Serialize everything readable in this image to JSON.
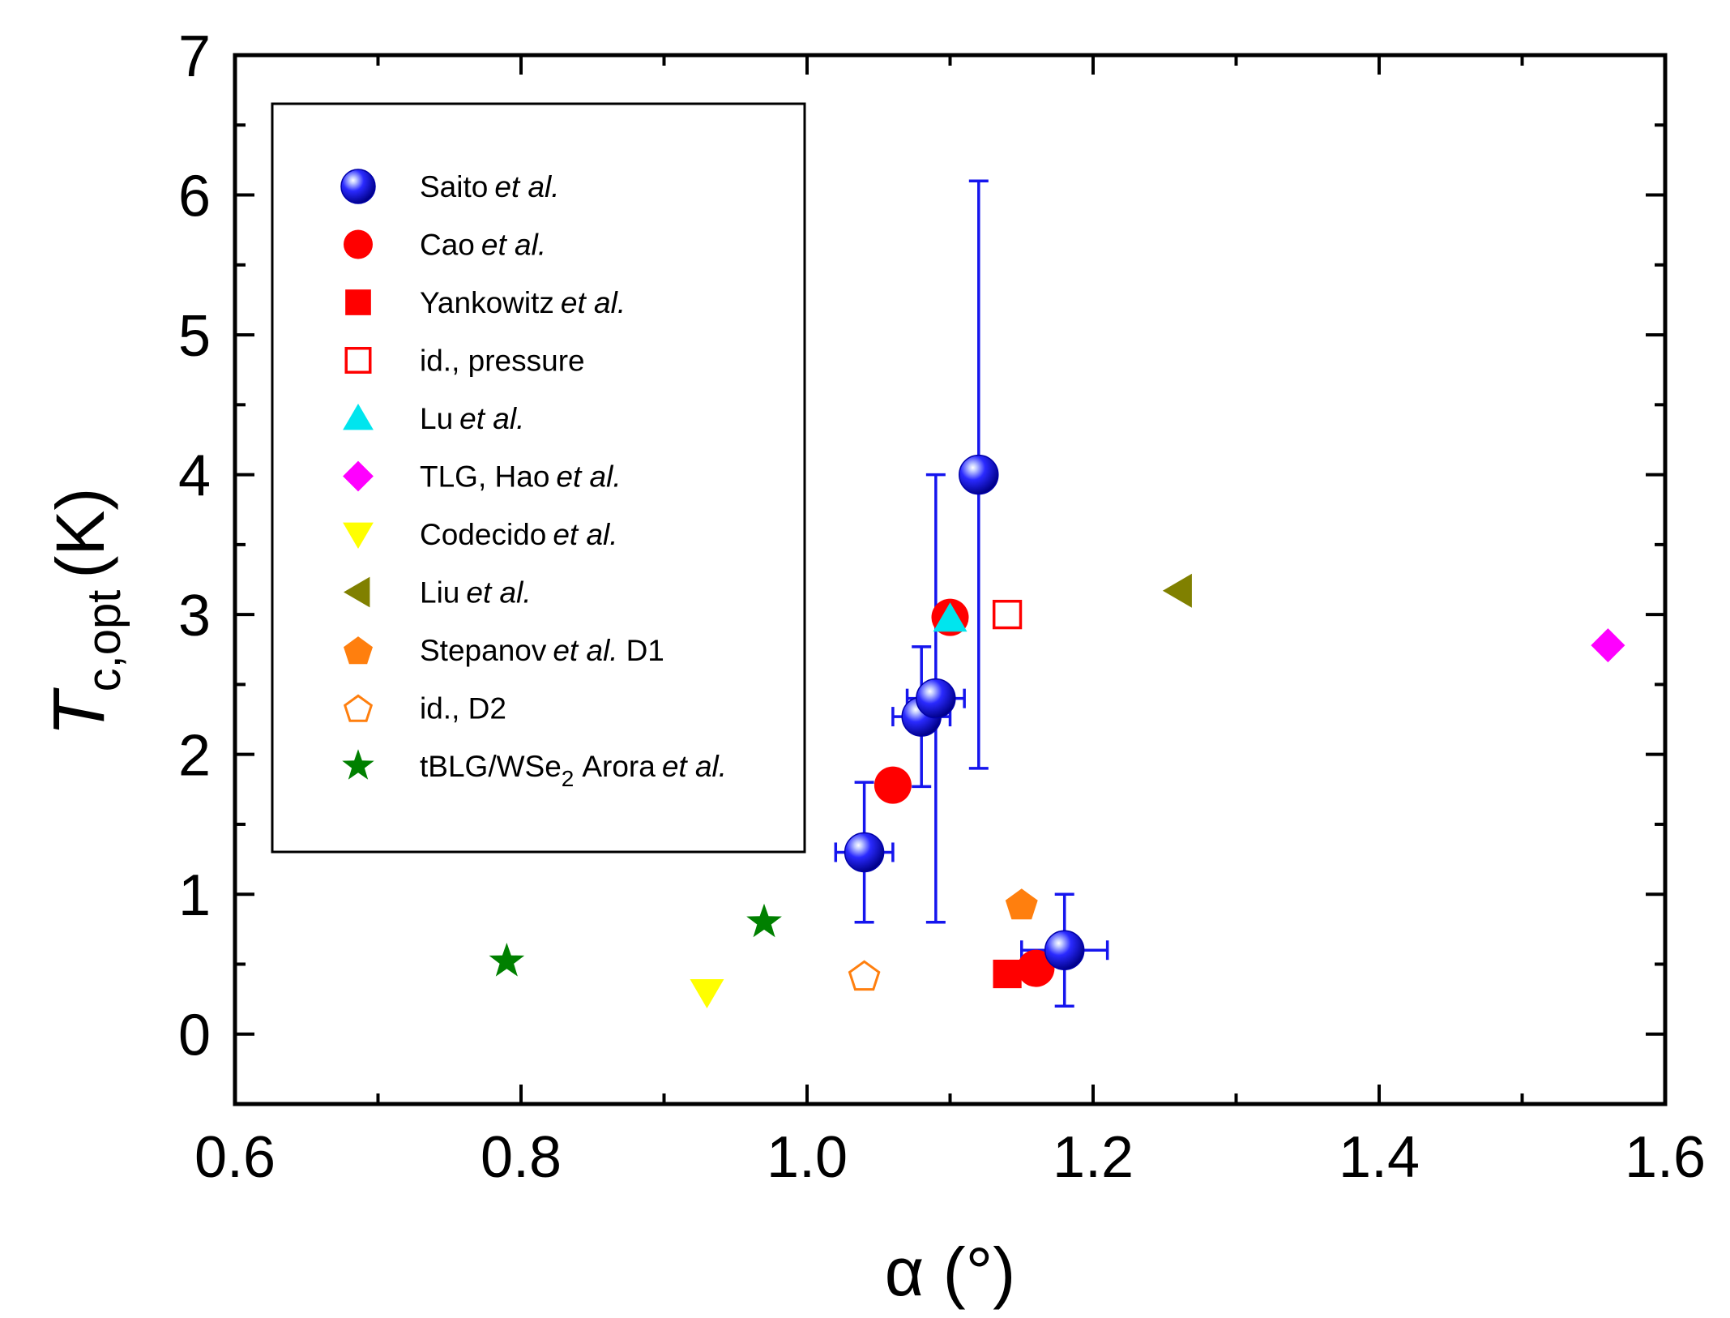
{
  "chart_data": {
    "type": "scatter",
    "xlabel": "α (°)",
    "ylabel": {
      "base": "T",
      "sub": "c,opt",
      "unit": "(K)"
    },
    "xlim": [
      0.6,
      1.6
    ],
    "ylim": [
      -0.5,
      7
    ],
    "xticks": [
      "0.6",
      "0.8",
      "1.0",
      "1.2",
      "1.4",
      "1.6"
    ],
    "yticks": [
      "0",
      "1",
      "2",
      "3",
      "4",
      "5",
      "6",
      "7"
    ],
    "grid": false,
    "legend_position": "top-left",
    "series": [
      {
        "name": "Saito",
        "suffix": "et al.",
        "marker": "sphere",
        "color": "#1515ee",
        "points": [
          {
            "x": 1.04,
            "y": 1.3,
            "xerr": 0.02,
            "yerr": [
              0.5,
              0.5
            ]
          },
          {
            "x": 1.08,
            "y": 2.27,
            "xerr": 0.02,
            "yerr": [
              0.5,
              0.5
            ]
          },
          {
            "x": 1.09,
            "y": 2.4,
            "xerr": 0.02,
            "yerr": [
              1.6,
              1.6
            ]
          },
          {
            "x": 1.12,
            "y": 4.0,
            "xerr": 0,
            "yerr": [
              2.1,
              2.1
            ]
          },
          {
            "x": 1.18,
            "y": 0.6,
            "xerr": 0.03,
            "yerr": [
              0.4,
              0.4
            ]
          }
        ]
      },
      {
        "name": "Cao",
        "suffix": "et al.",
        "marker": "circle",
        "color": "#ff0000",
        "points": [
          {
            "x": 1.06,
            "y": 1.78
          },
          {
            "x": 1.1,
            "y": 2.98
          },
          {
            "x": 1.16,
            "y": 0.47
          }
        ]
      },
      {
        "name": "Yankowitz",
        "suffix": "et al.",
        "marker": "square",
        "color": "#ff0000",
        "points": [
          {
            "x": 1.14,
            "y": 0.43
          }
        ]
      },
      {
        "name": "id., pressure",
        "suffix": "",
        "marker": "square-open",
        "color": "#ff0000",
        "points": [
          {
            "x": 1.14,
            "y": 3.0
          }
        ]
      },
      {
        "name": "Lu",
        "suffix": "et al.",
        "marker": "triangle-up",
        "color": "#00e5ee",
        "points": [
          {
            "x": 1.1,
            "y": 2.97
          }
        ]
      },
      {
        "name": "TLG, Hao",
        "suffix": "et al.",
        "marker": "diamond",
        "color": "#ff00ff",
        "points": [
          {
            "x": 1.56,
            "y": 2.78
          }
        ]
      },
      {
        "name": "Codecido",
        "suffix": "et al.",
        "marker": "triangle-down",
        "color": "#ffff00",
        "points": [
          {
            "x": 0.93,
            "y": 0.3
          }
        ]
      },
      {
        "name": "Liu",
        "suffix": "et al.",
        "marker": "triangle-left",
        "color": "#808000",
        "points": [
          {
            "x": 1.26,
            "y": 3.17
          }
        ]
      },
      {
        "name": "Stepanov",
        "suffix": "et al.",
        "extra": "D1",
        "marker": "pentagon",
        "color": "#ff7f0e",
        "points": [
          {
            "x": 1.15,
            "y": 0.93
          }
        ]
      },
      {
        "name": "id., D2",
        "suffix": "",
        "marker": "pentagon-open",
        "color": "#ff7f0e",
        "points": [
          {
            "x": 1.04,
            "y": 0.42
          }
        ]
      },
      {
        "name": "tBLG/WSe",
        "sub": "2",
        "after_sub": "Arora",
        "suffix": "et al.",
        "marker": "star",
        "color": "#008000",
        "points": [
          {
            "x": 0.79,
            "y": 0.52
          },
          {
            "x": 0.97,
            "y": 0.8
          }
        ]
      }
    ]
  }
}
